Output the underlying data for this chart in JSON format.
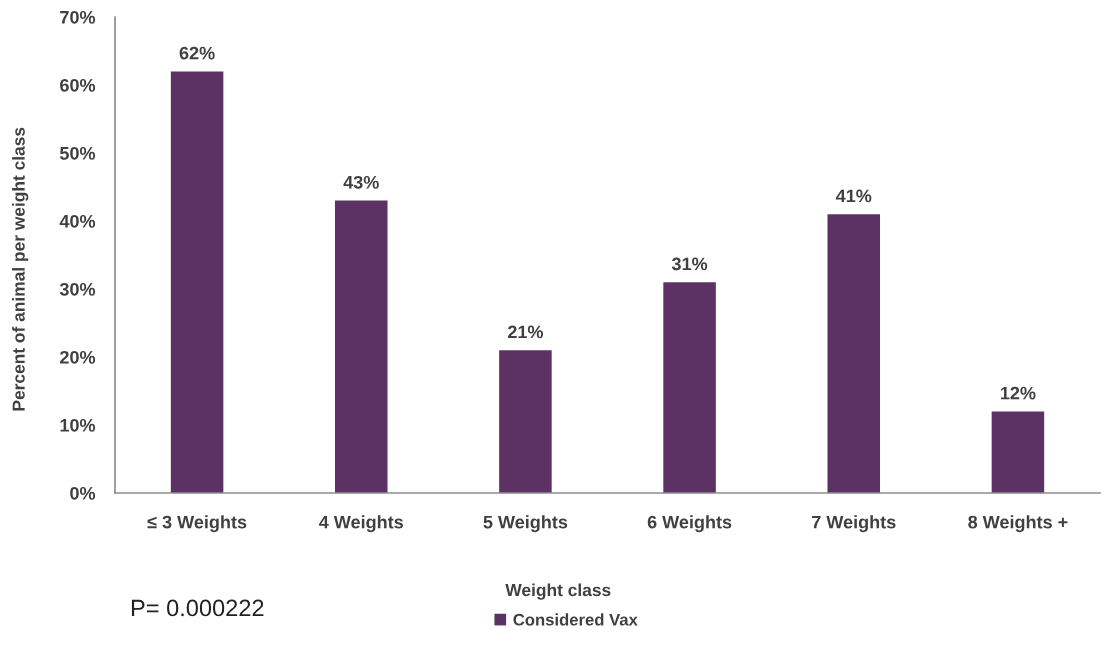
{
  "chart_data": {
    "type": "bar",
    "categories": [
      "≤ 3 Weights",
      "4 Weights",
      "5 Weights",
      "6 Weights",
      "7 Weights",
      "8 Weights +"
    ],
    "series": [
      {
        "name": "Considered Vax",
        "color": "#5c3265",
        "values": [
          62,
          43,
          21,
          31,
          41,
          12
        ],
        "value_labels": [
          "62%",
          "43%",
          "21%",
          "31%",
          "41%",
          "12%"
        ]
      }
    ],
    "xlabel": "Weight class",
    "ylabel": "Percent of animal per weight class",
    "ylim": [
      0,
      70
    ],
    "yticks": [
      {
        "value": 0,
        "label": "0%"
      },
      {
        "value": 10,
        "label": "10%"
      },
      {
        "value": 20,
        "label": "20%"
      },
      {
        "value": 30,
        "label": "30%"
      },
      {
        "value": 40,
        "label": "40%"
      },
      {
        "value": 50,
        "label": "50%"
      },
      {
        "value": 60,
        "label": "60%"
      },
      {
        "value": 70,
        "label": "70%"
      }
    ],
    "annotations": [
      "P= 0.000222"
    ],
    "legend": "bottom",
    "grid": false
  }
}
